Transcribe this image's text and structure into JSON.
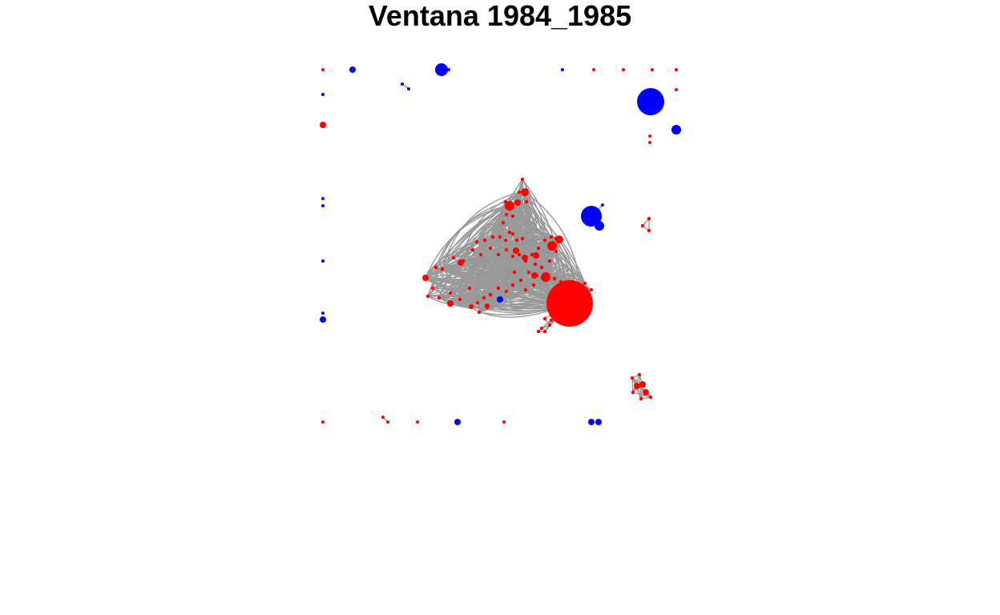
{
  "title": "Ventana 1984_1985",
  "colors": {
    "node_primary": "#ff0000",
    "node_secondary": "#0000ff",
    "edge": "#999999",
    "background": "#ffffff"
  },
  "legend": null,
  "chart_data": {
    "type": "network",
    "title": "Ventana 1984_1985",
    "node_color_groups": [
      "red",
      "blue"
    ],
    "node_count_estimate": 160,
    "grid": false,
    "axes": false
  }
}
